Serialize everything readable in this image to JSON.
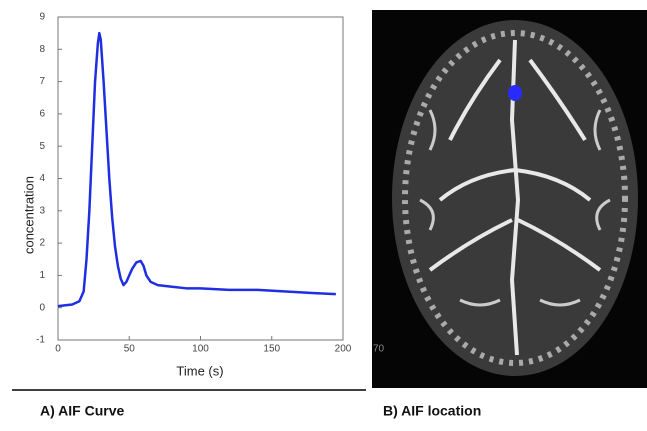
{
  "chart_data": {
    "type": "line",
    "xlabel": "Time (s)",
    "ylabel": "concentration",
    "x": [
      0,
      10,
      15,
      18,
      20,
      22,
      24,
      26,
      28,
      29,
      30,
      32,
      34,
      36,
      38,
      40,
      42,
      44,
      46,
      48,
      50,
      52,
      55,
      58,
      60,
      62,
      65,
      70,
      80,
      90,
      100,
      120,
      140,
      160,
      180,
      195
    ],
    "values": [
      0.05,
      0.1,
      0.2,
      0.5,
      1.5,
      3,
      5,
      7,
      8.2,
      8.5,
      8.3,
      7,
      5.5,
      4,
      2.8,
      1.9,
      1.3,
      0.9,
      0.7,
      0.8,
      1.0,
      1.2,
      1.4,
      1.45,
      1.3,
      1.0,
      0.8,
      0.7,
      0.65,
      0.6,
      0.6,
      0.55,
      0.55,
      0.5,
      0.45,
      0.42
    ],
    "color": "#1f2fe0",
    "xlim": [
      0,
      200
    ],
    "xticks": [
      0,
      50,
      100,
      150,
      200
    ],
    "ylim": [
      -1,
      9
    ],
    "yticks": [
      -1,
      0,
      1,
      2,
      3,
      4,
      5,
      6,
      7,
      8,
      9
    ]
  },
  "captions": [
    "A) AIF Curve",
    "B) AIF location"
  ],
  "image": {
    "overlay_text": "70"
  }
}
